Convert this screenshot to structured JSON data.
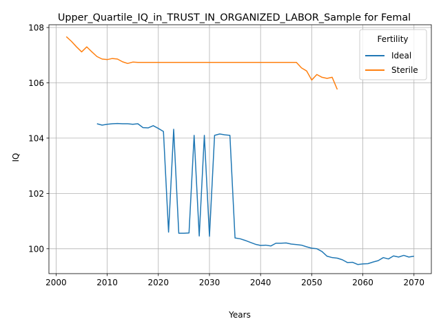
{
  "chart_data": {
    "type": "line",
    "title": "Upper_Quartile_IQ_in_TRUST_IN_ORGANIZED_LABOR_Sample for Femal",
    "xlabel": "Years",
    "ylabel": "IQ",
    "xlim": [
      1998.6,
      2073.4
    ],
    "ylim": [
      99.1,
      108.1
    ],
    "xticks": [
      2000,
      2010,
      2020,
      2030,
      2040,
      2050,
      2060,
      2070
    ],
    "yticks": [
      100,
      102,
      104,
      106,
      108
    ],
    "grid": true,
    "legend": {
      "title": "Fertility",
      "placement": "top-right"
    },
    "series": [
      {
        "name": "Ideal",
        "color": "#1f77b4",
        "x": [
          2008,
          2009,
          2010,
          2011,
          2012,
          2013,
          2014,
          2015,
          2016,
          2017,
          2018,
          2019,
          2020,
          2021,
          2022,
          2023,
          2024,
          2025,
          2026,
          2027,
          2028,
          2029,
          2030,
          2031,
          2032,
          2033,
          2034,
          2035,
          2036,
          2037,
          2038,
          2039,
          2040,
          2041,
          2042,
          2043,
          2044,
          2045,
          2046,
          2047,
          2048,
          2049,
          2050,
          2051,
          2052,
          2053,
          2054,
          2055,
          2056,
          2057,
          2058,
          2059,
          2060,
          2061,
          2062,
          2063,
          2064,
          2065,
          2066,
          2067,
          2068,
          2069,
          2070
        ],
        "y": [
          104.52,
          104.47,
          104.5,
          104.52,
          104.53,
          104.52,
          104.52,
          104.5,
          104.52,
          104.38,
          104.37,
          104.45,
          104.35,
          104.24,
          100.6,
          104.32,
          100.56,
          100.56,
          100.57,
          104.1,
          100.46,
          104.1,
          100.45,
          104.1,
          104.15,
          104.12,
          104.1,
          100.39,
          100.36,
          100.3,
          100.23,
          100.16,
          100.12,
          100.13,
          100.1,
          100.2,
          100.2,
          100.21,
          100.17,
          100.15,
          100.13,
          100.07,
          100.02,
          100.0,
          99.9,
          99.73,
          99.68,
          99.66,
          99.6,
          99.5,
          99.51,
          99.43,
          99.45,
          99.46,
          99.52,
          99.57,
          99.68,
          99.63,
          99.74,
          99.7,
          99.76,
          99.7,
          99.73
        ]
      },
      {
        "name": "Sterile",
        "color": "#ff7f0e",
        "x": [
          2002,
          2003,
          2004,
          2005,
          2006,
          2007,
          2008,
          2009,
          2010,
          2011,
          2012,
          2013,
          2014,
          2015,
          2016,
          2017,
          2018,
          2019,
          2020,
          2021,
          2022,
          2023,
          2024,
          2025,
          2026,
          2027,
          2028,
          2029,
          2030,
          2031,
          2032,
          2033,
          2034,
          2035,
          2036,
          2037,
          2038,
          2039,
          2040,
          2041,
          2042,
          2043,
          2044,
          2045,
          2046,
          2047,
          2048,
          2049,
          2050,
          2051,
          2052,
          2053,
          2054,
          2055
        ],
        "y": [
          107.67,
          107.5,
          107.3,
          107.12,
          107.3,
          107.12,
          106.95,
          106.86,
          106.84,
          106.88,
          106.86,
          106.76,
          106.7,
          106.75,
          106.74,
          106.74,
          106.74,
          106.74,
          106.74,
          106.74,
          106.74,
          106.74,
          106.74,
          106.74,
          106.74,
          106.74,
          106.74,
          106.74,
          106.74,
          106.74,
          106.74,
          106.74,
          106.74,
          106.74,
          106.74,
          106.74,
          106.74,
          106.74,
          106.74,
          106.74,
          106.74,
          106.74,
          106.74,
          106.74,
          106.74,
          106.74,
          106.54,
          106.43,
          106.1,
          106.3,
          106.2,
          106.16,
          106.2,
          105.76
        ]
      }
    ]
  }
}
